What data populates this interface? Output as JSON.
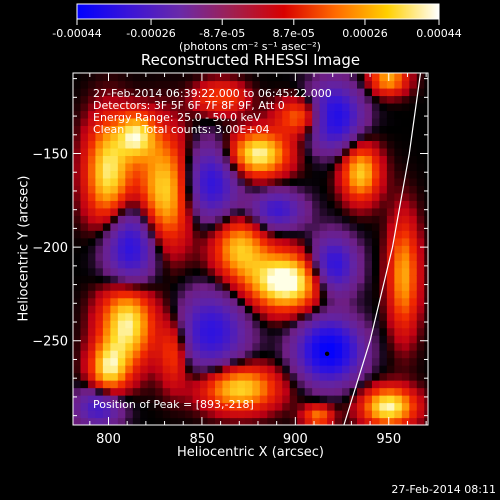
{
  "colorbar": {
    "tick_labels": [
      "-0.00044",
      "-0.00026",
      "-8.7e-05",
      "8.7e-05",
      "0.00026",
      "0.00044"
    ],
    "tick_values": [
      -0.00044,
      -0.00026,
      -8.7e-05,
      8.7e-05,
      0.00026,
      0.00044
    ],
    "range": [
      -0.00044,
      0.00044
    ],
    "units": "(photons cm⁻² s⁻¹ asec⁻²)",
    "colors": [
      "#0000ff",
      "#3a14d8",
      "#6a2aa8",
      "#a02050",
      "#d80000",
      "#ff6a00",
      "#ffd000",
      "#ffffff"
    ]
  },
  "chart_data": {
    "type": "heatmap",
    "title": "Reconstructed RHESSI Image",
    "xlabel": "Heliocentric X (arcsec)",
    "ylabel": "Heliocentric Y (arcsec)",
    "xlim": [
      781,
      971
    ],
    "ylim": [
      -295,
      -107
    ],
    "x_ticks": [
      800,
      850,
      900,
      950
    ],
    "y_ticks": [
      -150,
      -200,
      -250
    ],
    "annotations": [
      "27-Feb-2014 06:39:22.000 to 06:45:22.000",
      "Detectors: 3F 5F 6F 7F 8F 9F, Att 0",
      "Energy Range: 25.0 - 50.0 keV",
      "Clean     Total counts: 3.00E+04"
    ],
    "peak_label": "Position of Peak = [893,-218]",
    "peak": [
      893,
      -218
    ],
    "marked_point": [
      917,
      -257
    ],
    "limb_curve": [
      [
        926,
        -295
      ],
      [
        940,
        -250
      ],
      [
        952,
        -200
      ],
      [
        961,
        -150
      ],
      [
        967,
        -107
      ]
    ],
    "blobs": [
      {
        "x": 800,
        "y": -160,
        "sx": 12,
        "sy": 28,
        "a": 0.8
      },
      {
        "x": 815,
        "y": -140,
        "sx": 10,
        "sy": 12,
        "a": 0.7
      },
      {
        "x": 830,
        "y": -170,
        "sx": 14,
        "sy": 30,
        "a": 0.75
      },
      {
        "x": 810,
        "y": -240,
        "sx": 14,
        "sy": 22,
        "a": 0.85
      },
      {
        "x": 800,
        "y": -265,
        "sx": 10,
        "sy": 14,
        "a": 0.7
      },
      {
        "x": 860,
        "y": -120,
        "sx": 12,
        "sy": 8,
        "a": 0.65
      },
      {
        "x": 880,
        "y": -150,
        "sx": 16,
        "sy": 12,
        "a": 0.85
      },
      {
        "x": 905,
        "y": -130,
        "sx": 14,
        "sy": 10,
        "a": 0.6
      },
      {
        "x": 895,
        "y": -218,
        "sx": 20,
        "sy": 15,
        "a": 1.0
      },
      {
        "x": 870,
        "y": -200,
        "sx": 14,
        "sy": 16,
        "a": 0.65
      },
      {
        "x": 870,
        "y": -275,
        "sx": 20,
        "sy": 12,
        "a": 0.75
      },
      {
        "x": 935,
        "y": -160,
        "sx": 10,
        "sy": 15,
        "a": 0.7
      },
      {
        "x": 950,
        "y": -110,
        "sx": 10,
        "sy": 8,
        "a": 0.6
      },
      {
        "x": 958,
        "y": -215,
        "sx": 8,
        "sy": 30,
        "a": 0.6
      },
      {
        "x": 950,
        "y": -285,
        "sx": 14,
        "sy": 10,
        "a": 0.85
      },
      {
        "x": 912,
        "y": -290,
        "sx": 8,
        "sy": 6,
        "a": 0.5
      },
      {
        "x": 835,
        "y": -255,
        "sx": 8,
        "sy": 18,
        "a": 0.45
      }
    ],
    "wells": [
      {
        "x": 812,
        "y": -200,
        "sx": 14,
        "sy": 22,
        "a": 0.8
      },
      {
        "x": 855,
        "y": -165,
        "sx": 14,
        "sy": 20,
        "a": 0.7
      },
      {
        "x": 890,
        "y": -180,
        "sx": 14,
        "sy": 10,
        "a": 0.6
      },
      {
        "x": 920,
        "y": -130,
        "sx": 14,
        "sy": 16,
        "a": 0.95
      },
      {
        "x": 920,
        "y": -210,
        "sx": 12,
        "sy": 15,
        "a": 0.8
      },
      {
        "x": 918,
        "y": -255,
        "sx": 16,
        "sy": 16,
        "a": 1.1
      },
      {
        "x": 855,
        "y": -245,
        "sx": 18,
        "sy": 20,
        "a": 0.7
      },
      {
        "x": 795,
        "y": -285,
        "sx": 12,
        "sy": 10,
        "a": 0.6
      },
      {
        "x": 860,
        "y": -120,
        "sx": 8,
        "sy": 6,
        "a": 0.3
      }
    ]
  },
  "footer": {
    "timestamp": "27-Feb-2014 08:11"
  }
}
